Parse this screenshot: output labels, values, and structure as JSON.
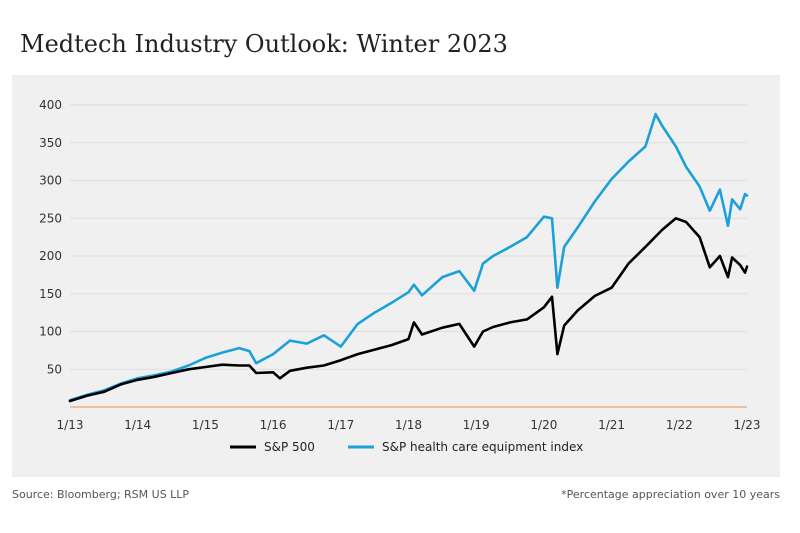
{
  "title": "Medtech Industry Outlook: Winter 2023",
  "source": "Source: Bloomberg; RSM US LLP",
  "footnote": "*Percentage appreciation over 10 years",
  "colors": {
    "sp500": "#000000",
    "healthcare": "#1ba1d8",
    "baseline": "#f4a460",
    "background": "#f0f0f0"
  },
  "chart_data": {
    "type": "line",
    "title": "Medtech Industry Outlook: Winter 2023",
    "xlabel": "",
    "ylabel": "",
    "xlim": [
      2013,
      2023
    ],
    "ylim": [
      0,
      400
    ],
    "x_ticks": [
      "1/13",
      "1/14",
      "1/15",
      "1/16",
      "1/17",
      "1/18",
      "1/19",
      "1/20",
      "1/21",
      "1/22",
      "1/23"
    ],
    "y_ticks": [
      50,
      100,
      150,
      200,
      250,
      300,
      350,
      400
    ],
    "grid": true,
    "legend_position": "bottom",
    "series": [
      {
        "name": "S&P 500",
        "color": "#000000",
        "x": [
          2013.0,
          2013.25,
          2013.5,
          2013.75,
          2014.0,
          2014.25,
          2014.5,
          2014.75,
          2015.0,
          2015.25,
          2015.5,
          2015.65,
          2015.75,
          2016.0,
          2016.1,
          2016.25,
          2016.5,
          2016.75,
          2017.0,
          2017.25,
          2017.5,
          2017.75,
          2018.0,
          2018.08,
          2018.2,
          2018.5,
          2018.75,
          2018.97,
          2019.1,
          2019.25,
          2019.5,
          2019.75,
          2020.0,
          2020.12,
          2020.2,
          2020.3,
          2020.5,
          2020.75,
          2021.0,
          2021.25,
          2021.5,
          2021.75,
          2021.95,
          2022.1,
          2022.3,
          2022.45,
          2022.6,
          2022.72,
          2022.78,
          2022.9,
          2022.97,
          2023.0
        ],
        "y": [
          8,
          15,
          20,
          30,
          36,
          40,
          45,
          50,
          53,
          56,
          55,
          55,
          45,
          46,
          38,
          48,
          52,
          55,
          62,
          70,
          76,
          82,
          90,
          112,
          96,
          105,
          110,
          80,
          100,
          106,
          112,
          116,
          132,
          146,
          70,
          108,
          128,
          147,
          158,
          190,
          212,
          235,
          250,
          245,
          225,
          185,
          200,
          172,
          198,
          188,
          178,
          186
        ]
      },
      {
        "name": "S&P health care equipment index",
        "color": "#1ba1d8",
        "x": [
          2013.0,
          2013.25,
          2013.5,
          2013.75,
          2014.0,
          2014.25,
          2014.5,
          2014.75,
          2015.0,
          2015.25,
          2015.5,
          2015.65,
          2015.75,
          2016.0,
          2016.25,
          2016.5,
          2016.75,
          2017.0,
          2017.25,
          2017.5,
          2017.75,
          2018.0,
          2018.08,
          2018.2,
          2018.5,
          2018.75,
          2018.97,
          2019.1,
          2019.25,
          2019.5,
          2019.75,
          2020.0,
          2020.12,
          2020.2,
          2020.3,
          2020.5,
          2020.75,
          2021.0,
          2021.25,
          2021.5,
          2021.65,
          2021.75,
          2021.95,
          2022.1,
          2022.3,
          2022.45,
          2022.6,
          2022.72,
          2022.78,
          2022.9,
          2022.97,
          2023.0
        ],
        "y": [
          9,
          16,
          22,
          31,
          38,
          42,
          47,
          55,
          65,
          72,
          78,
          74,
          58,
          70,
          88,
          84,
          95,
          80,
          110,
          125,
          138,
          152,
          162,
          148,
          172,
          180,
          154,
          190,
          200,
          212,
          225,
          252,
          250,
          158,
          212,
          238,
          272,
          302,
          325,
          345,
          388,
          372,
          345,
          318,
          292,
          260,
          288,
          240,
          275,
          262,
          282,
          280
        ]
      }
    ]
  }
}
